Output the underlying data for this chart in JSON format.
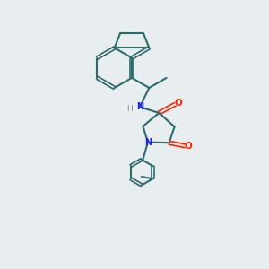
{
  "background_color": "#e8edf0",
  "bond_color": "#2d6b6b",
  "atom_colors": {
    "N": "#1a1aff",
    "O": "#ff2200",
    "H": "#888888"
  },
  "figsize": [
    3.0,
    3.0
  ],
  "dpi": 100,
  "xlim": [
    0,
    10
  ],
  "ylim": [
    0,
    10
  ]
}
